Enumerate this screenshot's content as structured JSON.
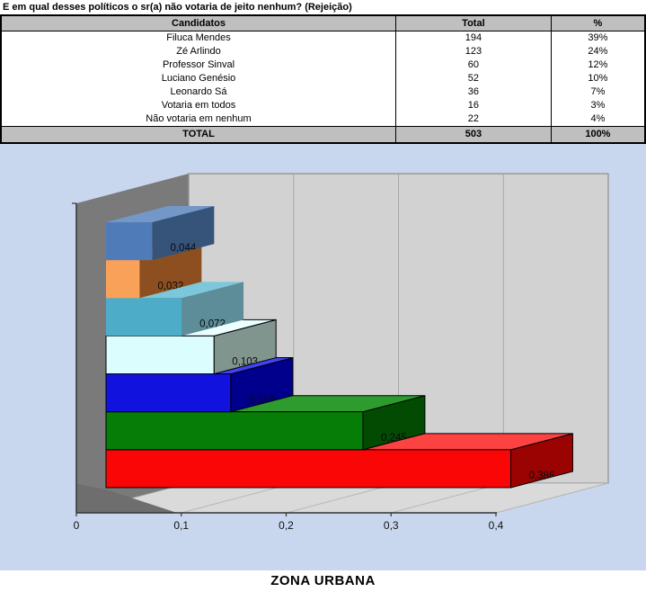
{
  "title": "E em qual desses políticos o sr(a) não votaria de jeito nenhum? (Rejeição)",
  "table": {
    "columns": [
      "Candidatos",
      "Total",
      "%"
    ],
    "rows": [
      [
        "Filuca Mendes",
        "194",
        "39%"
      ],
      [
        "Zé Arlindo",
        "123",
        "24%"
      ],
      [
        "Professor Sinval",
        "60",
        "12%"
      ],
      [
        "Luciano Genésio",
        "52",
        "10%"
      ],
      [
        "Leonardo Sá",
        "36",
        "7%"
      ],
      [
        "Votaria em todos",
        "16",
        "3%"
      ],
      [
        "Não votaria em nenhum",
        "22",
        "4%"
      ]
    ],
    "total_row": [
      "TOTAL",
      "503",
      "100%"
    ]
  },
  "caption": "ZONA URBANA",
  "chart_data": {
    "type": "bar",
    "variant": "3d-horizontal",
    "title": "",
    "xlabel": "",
    "ylabel": "",
    "x_ticks": [
      "0",
      "0,1",
      "0,2",
      "0,3",
      "0,4"
    ],
    "xlim": [
      0,
      0.4
    ],
    "grid": true,
    "legend": false,
    "colors": {
      "background": "#c9d7ee",
      "back_wall": "#d2d2d2",
      "side_wall": "#7a7a7a",
      "floor": "#dadada",
      "floor_shadow": "#6e6e6e",
      "gridline": "#a8a8a8",
      "axis": "#333333"
    },
    "bars": [
      {
        "value": 0.044,
        "label": "0,044",
        "front": "#4f7cb8",
        "top": "#7397c7",
        "side": "#36537a",
        "outlined": false
      },
      {
        "value": 0.032,
        "label": "0,032",
        "front": "#f9a159",
        "top": "#fbb877",
        "side": "#8d4f1f",
        "outlined": false
      },
      {
        "value": 0.072,
        "label": "0,072",
        "front": "#4dadc8",
        "top": "#7cc8da",
        "side": "#5c8d99",
        "outlined": false
      },
      {
        "value": 0.103,
        "label": "0,103",
        "front": "#dcfdfd",
        "top": "#ecfeff",
        "side": "#80958d",
        "outlined": true
      },
      {
        "value": 0.119,
        "label": "0,119",
        "front": "#1212df",
        "top": "#4242ef",
        "side": "#00008d",
        "outlined": true
      },
      {
        "value": 0.245,
        "label": "0,245",
        "front": "#067d06",
        "top": "#2e9b2e",
        "side": "#034b03",
        "outlined": true
      },
      {
        "value": 0.386,
        "label": "0,386",
        "front": "#fb0606",
        "top": "#fd4242",
        "side": "#9b0303",
        "outlined": true
      }
    ]
  }
}
